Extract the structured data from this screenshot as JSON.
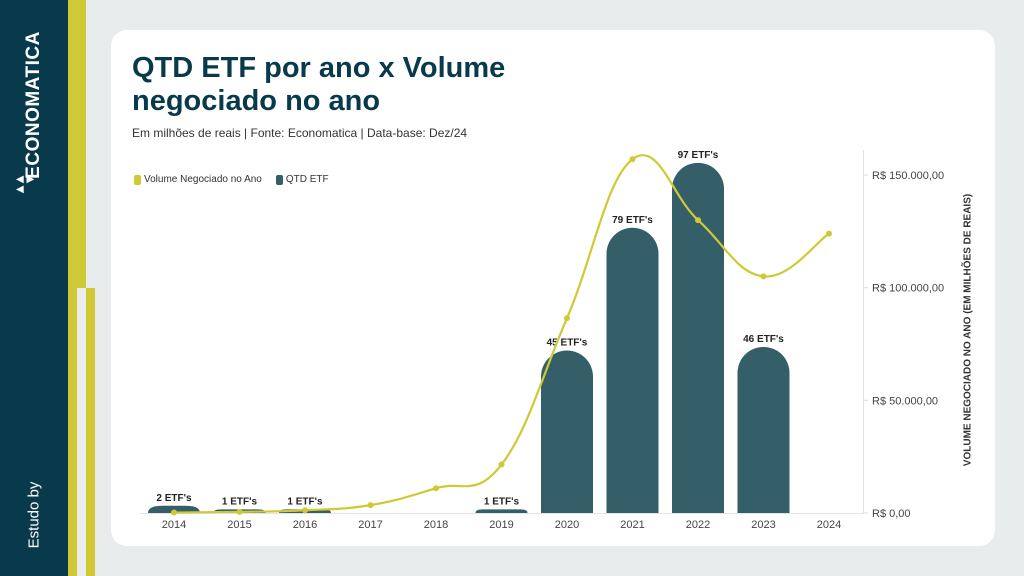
{
  "brand": {
    "name": "ECONOMATICA",
    "estudo_by": "Estudo by"
  },
  "colors": {
    "navy": "#083a4c",
    "yellow": "#cfc935",
    "bar": "#345f69",
    "line": "#cfc935"
  },
  "chart_data": {
    "type": "bar+line",
    "title": "QTD ETF por ano x Volume negociado no ano",
    "subtitle": "Em milhões de reais | Fonte: Economatica | Data-base: Dez/24",
    "legend": [
      "Volume Negociado no Ano",
      "QTD ETF"
    ],
    "legend_position": "top-left",
    "categories": [
      "2014",
      "2015",
      "2016",
      "2017",
      "2018",
      "2019",
      "2020",
      "2021",
      "2022",
      "2023",
      "2024"
    ],
    "series": [
      {
        "name": "QTD ETF",
        "type": "bar",
        "axis": "hidden-left",
        "values": [
          2,
          1,
          1,
          0,
          0,
          1,
          45,
          79,
          97,
          46,
          0
        ],
        "labels": [
          "2 ETF's",
          "1 ETF's",
          "1 ETF's",
          "",
          "",
          "1 ETF's",
          "45 ETF's",
          "79 ETF's",
          "97 ETF's",
          "46 ETF's",
          ""
        ]
      },
      {
        "name": "Volume Negociado no Ano",
        "type": "line",
        "axis": "right",
        "values": [
          200,
          500,
          1200,
          3500,
          11000,
          21500,
          86500,
          157000,
          130000,
          105000,
          124000
        ]
      }
    ],
    "y_right": {
      "label": "VOLUME NEGOCIADO NO ANO (EM MILHÕES DE REAIS)",
      "ticks": [
        0,
        50000,
        100000,
        150000
      ],
      "tick_labels": [
        "R$ 0,00",
        "R$ 50.000,00",
        "R$ 100.000,00",
        "R$ 150.000,00"
      ],
      "range": [
        0,
        160000
      ]
    },
    "y_bar_range": [
      0,
      100
    ]
  }
}
